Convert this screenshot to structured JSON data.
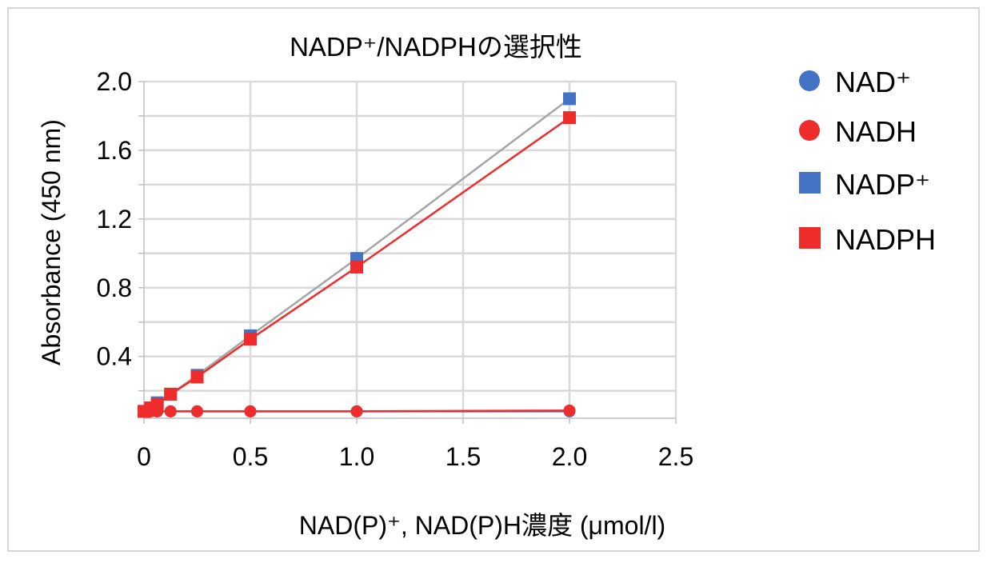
{
  "chart_data": {
    "type": "scatter",
    "title": "NADP⁺/NADPHの選択性",
    "xlabel": "NAD(P)⁺, NAD(P)H濃度 (μmol/l)",
    "ylabel": "Absorbance (450 nm)",
    "xlim": [
      0,
      2.5
    ],
    "ylim": [
      0.04,
      2.0
    ],
    "x_ticks": [
      0,
      0.5,
      1.0,
      1.5,
      2.0,
      2.5
    ],
    "x_tick_labels": [
      "0",
      "0.5",
      "1.0",
      "1.5",
      "2.0",
      "2.5"
    ],
    "y_ticks": [
      0.4,
      0.8,
      1.2,
      1.6,
      2.0
    ],
    "y_tick_labels": [
      "0.4",
      "0.8",
      "1.2",
      "1.6",
      "2.0"
    ],
    "grid": true,
    "legend_position": "right",
    "series": [
      {
        "name": "NAD⁺",
        "marker": "circle",
        "color": "#4472C4",
        "line_color": "#4472C4",
        "x": [
          0,
          0.03125,
          0.0625,
          0.125,
          0.25,
          0.5,
          1.0,
          2.0
        ],
        "y": [
          0.08,
          0.08,
          0.08,
          0.08,
          0.08,
          0.08,
          0.08,
          0.08
        ]
      },
      {
        "name": "NADH",
        "marker": "circle",
        "color": "#EE2C2C",
        "line_color": "#EE2C2C",
        "x": [
          0,
          0.03125,
          0.0625,
          0.125,
          0.25,
          0.5,
          1.0,
          2.0
        ],
        "y": [
          0.08,
          0.08,
          0.08,
          0.08,
          0.08,
          0.08,
          0.08,
          0.085
        ]
      },
      {
        "name": "NADP⁺",
        "marker": "square",
        "color": "#4472C4",
        "line_color": "#A5A5A5",
        "x": [
          0,
          0.03125,
          0.0625,
          0.125,
          0.25,
          0.5,
          1.0,
          2.0
        ],
        "y": [
          0.08,
          0.1,
          0.13,
          0.18,
          0.29,
          0.52,
          0.97,
          1.9
        ]
      },
      {
        "name": "NADPH",
        "marker": "square",
        "color": "#EE2C2C",
        "line_color": "#EE2C2C",
        "x": [
          0,
          0.03125,
          0.0625,
          0.125,
          0.25,
          0.5,
          1.0,
          2.0
        ],
        "y": [
          0.08,
          0.1,
          0.12,
          0.18,
          0.28,
          0.5,
          0.92,
          1.79
        ]
      }
    ]
  }
}
